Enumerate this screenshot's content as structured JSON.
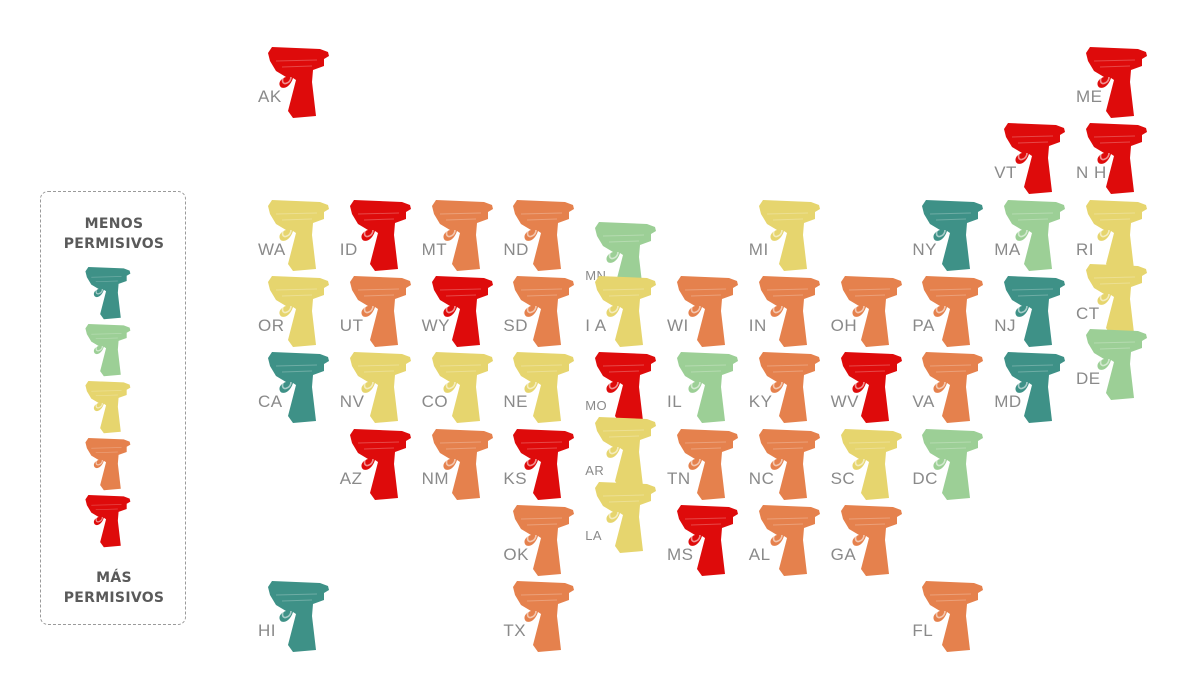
{
  "legend": {
    "top_line1": "MENOS",
    "top_line2": "PERMISIVOS",
    "bottom_line1": "MÁS",
    "bottom_line2": "PERMISIVOS",
    "scale": [
      {
        "level": 1,
        "color": "#3e9187"
      },
      {
        "level": 2,
        "color": "#9ccf96"
      },
      {
        "level": 3,
        "color": "#e6d56e"
      },
      {
        "level": 4,
        "color": "#e5814d"
      },
      {
        "level": 5,
        "color": "#de0b0b"
      }
    ]
  },
  "icon": "pistol-icon",
  "states": [
    {
      "code": "AK",
      "level": 5,
      "col": 0,
      "row": 0
    },
    {
      "code": "ME",
      "level": 5,
      "col": 10,
      "row": 0
    },
    {
      "code": "VT",
      "level": 5,
      "col": 9,
      "row": 1
    },
    {
      "code": "N H",
      "level": 5,
      "col": 10,
      "row": 1
    },
    {
      "code": "WA",
      "level": 3,
      "col": 0,
      "row": 2
    },
    {
      "code": "ID",
      "level": 5,
      "col": 1,
      "row": 2
    },
    {
      "code": "MT",
      "level": 4,
      "col": 2,
      "row": 2
    },
    {
      "code": "ND",
      "level": 4,
      "col": 3,
      "row": 2
    },
    {
      "code": "MN",
      "level": 2,
      "col": 4,
      "row": 2.3
    },
    {
      "code": "MI",
      "level": 3,
      "col": 6,
      "row": 2
    },
    {
      "code": "NY",
      "level": 1,
      "col": 8,
      "row": 2
    },
    {
      "code": "MA",
      "level": 2,
      "col": 9,
      "row": 2
    },
    {
      "code": "RI",
      "level": 3,
      "col": 10,
      "row": 2
    },
    {
      "code": "OR",
      "level": 3,
      "col": 0,
      "row": 3
    },
    {
      "code": "UT",
      "level": 4,
      "col": 1,
      "row": 3
    },
    {
      "code": "WY",
      "level": 5,
      "col": 2,
      "row": 3
    },
    {
      "code": "SD",
      "level": 4,
      "col": 3,
      "row": 3
    },
    {
      "code": "I A",
      "level": 3,
      "col": 4,
      "row": 3
    },
    {
      "code": "WI",
      "level": 4,
      "col": 5,
      "row": 3
    },
    {
      "code": "IN",
      "level": 4,
      "col": 6,
      "row": 3
    },
    {
      "code": "OH",
      "level": 4,
      "col": 7,
      "row": 3
    },
    {
      "code": "PA",
      "level": 4,
      "col": 8,
      "row": 3
    },
    {
      "code": "NJ",
      "level": 1,
      "col": 9,
      "row": 3
    },
    {
      "code": "CT",
      "level": 3,
      "col": 10,
      "row": 2.85
    },
    {
      "code": "CA",
      "level": 1,
      "col": 0,
      "row": 4
    },
    {
      "code": "NV",
      "level": 3,
      "col": 1,
      "row": 4
    },
    {
      "code": "CO",
      "level": 3,
      "col": 2,
      "row": 4
    },
    {
      "code": "NE",
      "level": 3,
      "col": 3,
      "row": 4
    },
    {
      "code": "MO",
      "level": 5,
      "col": 4,
      "row": 4
    },
    {
      "code": "IL",
      "level": 2,
      "col": 5,
      "row": 4
    },
    {
      "code": "KY",
      "level": 4,
      "col": 6,
      "row": 4
    },
    {
      "code": "WV",
      "level": 5,
      "col": 7,
      "row": 4
    },
    {
      "code": "VA",
      "level": 4,
      "col": 8,
      "row": 4
    },
    {
      "code": "MD",
      "level": 1,
      "col": 9,
      "row": 4
    },
    {
      "code": "DE",
      "level": 2,
      "col": 10,
      "row": 3.7
    },
    {
      "code": "AZ",
      "level": 5,
      "col": 1,
      "row": 5
    },
    {
      "code": "NM",
      "level": 4,
      "col": 2,
      "row": 5
    },
    {
      "code": "KS",
      "level": 5,
      "col": 3,
      "row": 5
    },
    {
      "code": "AR",
      "level": 3,
      "col": 4,
      "row": 4.85
    },
    {
      "code": "TN",
      "level": 4,
      "col": 5,
      "row": 5
    },
    {
      "code": "NC",
      "level": 4,
      "col": 6,
      "row": 5
    },
    {
      "code": "SC",
      "level": 3,
      "col": 7,
      "row": 5
    },
    {
      "code": "DC",
      "level": 2,
      "col": 8,
      "row": 5
    },
    {
      "code": "OK",
      "level": 4,
      "col": 3,
      "row": 6
    },
    {
      "code": "LA",
      "level": 3,
      "col": 4,
      "row": 5.7
    },
    {
      "code": "MS",
      "level": 5,
      "col": 5,
      "row": 6
    },
    {
      "code": "AL",
      "level": 4,
      "col": 6,
      "row": 6
    },
    {
      "code": "GA",
      "level": 4,
      "col": 7,
      "row": 6
    },
    {
      "code": "HI",
      "level": 1,
      "col": 0,
      "row": 7
    },
    {
      "code": "TX",
      "level": 4,
      "col": 3,
      "row": 7
    },
    {
      "code": "FL",
      "level": 4,
      "col": 8,
      "row": 7
    }
  ]
}
